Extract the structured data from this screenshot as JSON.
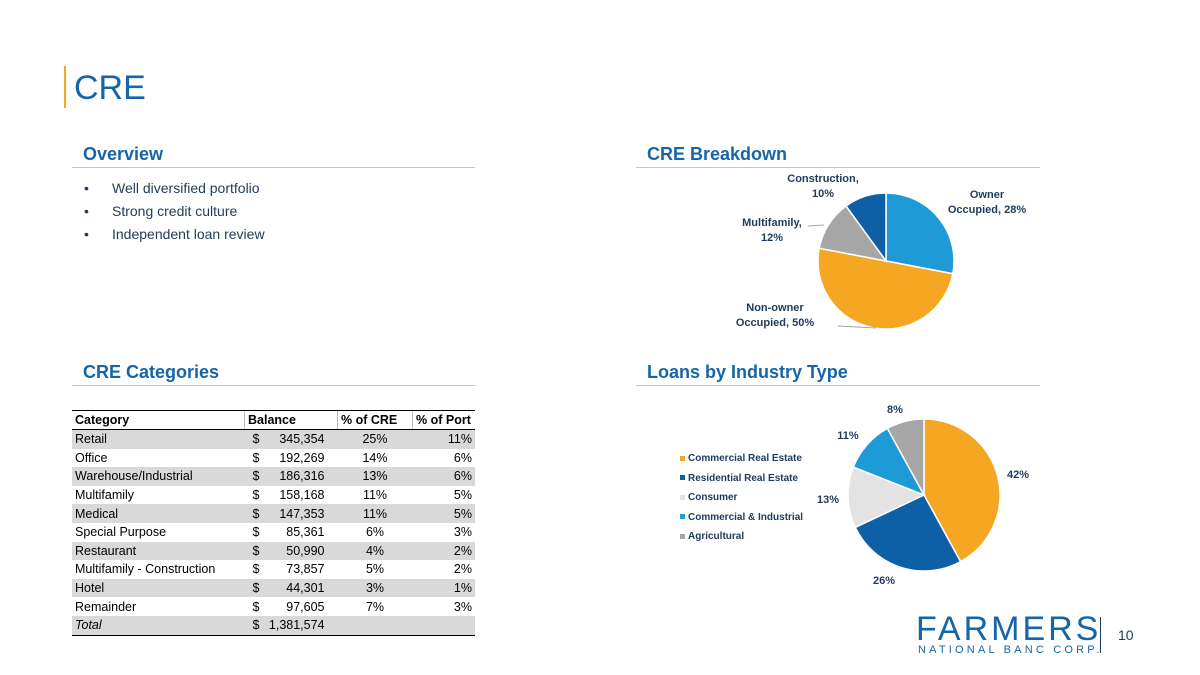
{
  "page": {
    "title": "CRE",
    "page_number": "10"
  },
  "overview": {
    "heading": "Overview",
    "bullets": [
      "Well diversified portfolio",
      "Strong credit culture",
      "Independent loan review"
    ]
  },
  "cre_breakdown": {
    "heading": "CRE Breakdown"
  },
  "cre_categories": {
    "heading": "CRE Categories",
    "columns": [
      "Category",
      "Balance",
      "% of CRE",
      "% of Port"
    ],
    "rows": [
      {
        "category": "Retail",
        "dollar": "$",
        "balance": "345,354",
        "pct_cre": "25%",
        "pct_port": "11%"
      },
      {
        "category": "Office",
        "dollar": "$",
        "balance": "192,269",
        "pct_cre": "14%",
        "pct_port": "6%"
      },
      {
        "category": "Warehouse/Industrial",
        "dollar": "$",
        "balance": "186,316",
        "pct_cre": "13%",
        "pct_port": "6%"
      },
      {
        "category": "Multifamily",
        "dollar": "$",
        "balance": "158,168",
        "pct_cre": "11%",
        "pct_port": "5%"
      },
      {
        "category": "Medical",
        "dollar": "$",
        "balance": "147,353",
        "pct_cre": "11%",
        "pct_port": "5%"
      },
      {
        "category": "Special Purpose",
        "dollar": "$",
        "balance": "85,361",
        "pct_cre": "6%",
        "pct_port": "3%"
      },
      {
        "category": "Restaurant",
        "dollar": "$",
        "balance": "50,990",
        "pct_cre": "4%",
        "pct_port": "2%"
      },
      {
        "category": "Multifamily - Construction",
        "dollar": "$",
        "balance": "73,857",
        "pct_cre": "5%",
        "pct_port": "2%"
      },
      {
        "category": "Hotel",
        "dollar": "$",
        "balance": "44,301",
        "pct_cre": "3%",
        "pct_port": "1%"
      },
      {
        "category": "Remainder",
        "dollar": "$",
        "balance": "97,605",
        "pct_cre": "7%",
        "pct_port": "3%"
      }
    ],
    "total": {
      "category": "Total",
      "dollar": "$",
      "balance": "1,381,574"
    }
  },
  "loans_by_industry": {
    "heading": "Loans by Industry Type"
  },
  "logo": {
    "top": "FARMERS",
    "bottom": "NATIONAL BANC CORP."
  },
  "chart_data": [
    {
      "type": "pie",
      "title": "CRE Breakdown",
      "slices": [
        {
          "label": "Owner Occupied",
          "value": 28,
          "display": "Owner Occupied, 28%",
          "color": "#1e9ad6"
        },
        {
          "label": "Non-owner Occupied",
          "value": 50,
          "display": "Non-owner Occupied, 50%",
          "color": "#f5a623"
        },
        {
          "label": "Multifamily",
          "value": 12,
          "display": "Multifamily, 12%",
          "color": "#a6a6a6"
        },
        {
          "label": "Construction",
          "value": 10,
          "display": "Construction, 10%",
          "color": "#0d5fa6"
        }
      ]
    },
    {
      "type": "pie",
      "title": "Loans by Industry Type",
      "legend": "left",
      "slices": [
        {
          "label": "Commercial Real Estate",
          "value": 42,
          "display": "42%",
          "color": "#f5a623"
        },
        {
          "label": "Residential Real Estate",
          "value": 26,
          "display": "26%",
          "color": "#0d5fa6"
        },
        {
          "label": "Consumer",
          "value": 13,
          "display": "13%",
          "color": "#e3e3e3"
        },
        {
          "label": "Commercial & Industrial",
          "value": 11,
          "display": "11%",
          "color": "#1e9ad6"
        },
        {
          "label": "Agricultural",
          "value": 8,
          "display": "8%",
          "color": "#a6a6a6"
        }
      ]
    }
  ]
}
